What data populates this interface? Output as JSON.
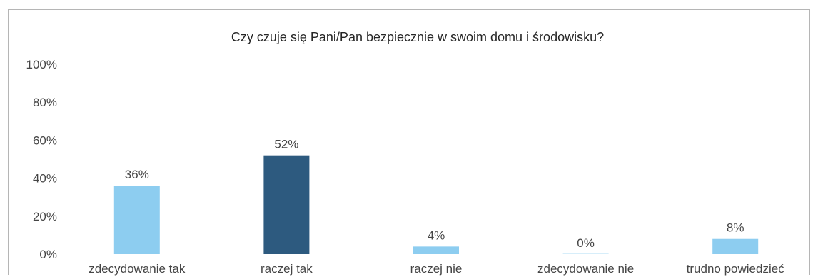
{
  "chart_data": {
    "type": "bar",
    "title": "Czy czuje się Pani/Pan bezpiecznie w swoim domu i środowisku?",
    "categories": [
      "zdecydowanie tak",
      "raczej tak",
      "raczej nie",
      "zdecydowanie nie",
      "trudno powiedzieć"
    ],
    "values": [
      36,
      52,
      4,
      0,
      8
    ],
    "value_labels": [
      "36%",
      "52%",
      "4%",
      "0%",
      "8%"
    ],
    "bar_colors": [
      "#8dcdf0",
      "#2d5a7f",
      "#8dcdf0",
      "#8dcdf0",
      "#8dcdf0"
    ],
    "yticks": [
      "0%",
      "20%",
      "40%",
      "60%",
      "80%",
      "100%"
    ],
    "ylim": [
      0,
      100
    ],
    "xlabel": "",
    "ylabel": "",
    "grid": false,
    "legend": "none"
  }
}
